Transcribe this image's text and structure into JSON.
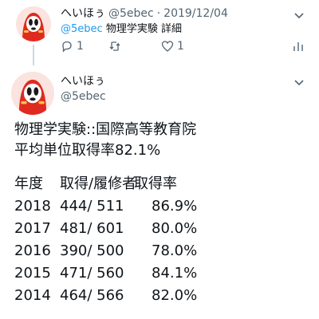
{
  "tweet1": {
    "name": "へいほぅ",
    "handle": "@5ebec",
    "separator": "·",
    "date": "2019/12/04",
    "reply_handle": "@5ebec",
    "reply_text": "物理学実験",
    "details_link": "詳細",
    "reply_count": "1",
    "like_count": "1"
  },
  "tweet2": {
    "name": "へいほぅ",
    "handle": "@5ebec",
    "text_line1": "物理学実験::国際高等教育院",
    "text_line2": "平均単位取得率82.1%",
    "table_header": {
      "year": "年度",
      "counts": "取得/履修者",
      "rate": "取得率"
    },
    "table_rows": [
      {
        "year": "2018",
        "counts": "444/  511",
        "rate": "86.9%"
      },
      {
        "year": "2017",
        "counts": "481/  601",
        "rate": "80.0%"
      },
      {
        "year": "2016",
        "counts": "390/  500",
        "rate": "78.0%"
      },
      {
        "year": "2015",
        "counts": "471/  560",
        "rate": "84.1%"
      },
      {
        "year": "2014",
        "counts": "464/  566",
        "rate": "82.0%"
      }
    ]
  },
  "icons": [
    "avatar-ghost-icon",
    "chevron-down-icon",
    "reply-icon",
    "retweet-icon",
    "like-icon",
    "analytics-icon"
  ],
  "colors": {
    "link": "#1d9bf0",
    "muted": "#536471",
    "text": "#0f1419",
    "avatar_red": "#e02a1f"
  }
}
